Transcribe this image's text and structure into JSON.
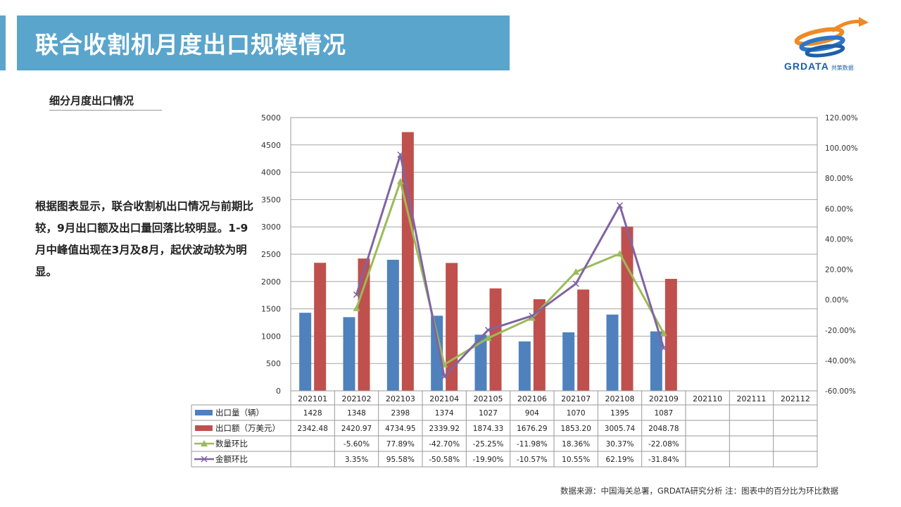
{
  "title": "联合收割机月度出口规模情况",
  "subtitle": "细分月度出口情况",
  "description": "根据图表显示，联合收割机出口情况与前期比较，9月出口额及出口量回落比较明显。1-9月中峰值出现在3月及8月，起伏波动较为明显。",
  "logo": {
    "text": "GRDATA",
    "tagline": "共策数据",
    "icon": "globe-swoosh-logo"
  },
  "source": "数据来源：中国海关总署，GRDATA研究分析  注：图表中的百分比为环比数据",
  "colors": {
    "bar1": "#4f81bd",
    "bar2": "#c0504d",
    "line1": "#9bbb59",
    "line2": "#8064a2",
    "title_bg": "#5aa5cb"
  },
  "chart_data": {
    "type": "bar",
    "categories": [
      "202101",
      "202102",
      "202103",
      "202104",
      "202105",
      "202106",
      "202107",
      "202108",
      "202109",
      "202110",
      "202111",
      "202112"
    ],
    "y_left": {
      "min": 0,
      "max": 5000,
      "step": 500,
      "ticks": [
        "0",
        "500",
        "1000",
        "1500",
        "2000",
        "2500",
        "3000",
        "3500",
        "4000",
        "4500",
        "5000"
      ]
    },
    "y_right": {
      "min": -60,
      "max": 120,
      "step": 20,
      "ticks": [
        "-60.00%",
        "-40.00%",
        "-20.00%",
        "0.00%",
        "20.00%",
        "40.00%",
        "60.00%",
        "80.00%",
        "100.00%",
        "120.00%"
      ]
    },
    "grid": true,
    "legend": "data-table",
    "series": [
      {
        "name": "出口量（辆）",
        "type": "bar",
        "axis": "left",
        "values": [
          1428,
          1348,
          2398,
          1374,
          1027,
          904,
          1070,
          1395,
          1087,
          null,
          null,
          null
        ],
        "labels": [
          "1428",
          "1348",
          "2398",
          "1374",
          "1027",
          "904",
          "1070",
          "1395",
          "1087",
          "",
          "",
          ""
        ]
      },
      {
        "name": "出口额（万美元）",
        "type": "bar",
        "axis": "left",
        "values": [
          2342.48,
          2420.97,
          4734.95,
          2339.92,
          1874.33,
          1676.29,
          1853.2,
          3005.74,
          2048.78,
          null,
          null,
          null
        ],
        "labels": [
          "2342.48",
          "2420.97",
          "4734.95",
          "2339.92",
          "1874.33",
          "1676.29",
          "1853.20",
          "3005.74",
          "2048.78",
          "",
          "",
          ""
        ]
      },
      {
        "name": "数量环比",
        "type": "line",
        "axis": "right",
        "marker": "triangle",
        "values": [
          null,
          -5.6,
          77.89,
          -42.7,
          -25.25,
          -11.98,
          18.36,
          30.37,
          -22.08,
          null,
          null,
          null
        ],
        "labels": [
          "",
          "-5.60%",
          "77.89%",
          "-42.70%",
          "-25.25%",
          "-11.98%",
          "18.36%",
          "30.37%",
          "-22.08%",
          "",
          "",
          ""
        ]
      },
      {
        "name": "金额环比",
        "type": "line",
        "axis": "right",
        "marker": "x",
        "values": [
          null,
          3.35,
          95.58,
          -50.58,
          -19.9,
          -10.57,
          10.55,
          62.19,
          -31.84,
          null,
          null,
          null
        ],
        "labels": [
          "",
          "3.35%",
          "95.58%",
          "-50.58%",
          "-19.90%",
          "-10.57%",
          "10.55%",
          "62.19%",
          "-31.84%",
          "",
          "",
          ""
        ]
      }
    ]
  }
}
